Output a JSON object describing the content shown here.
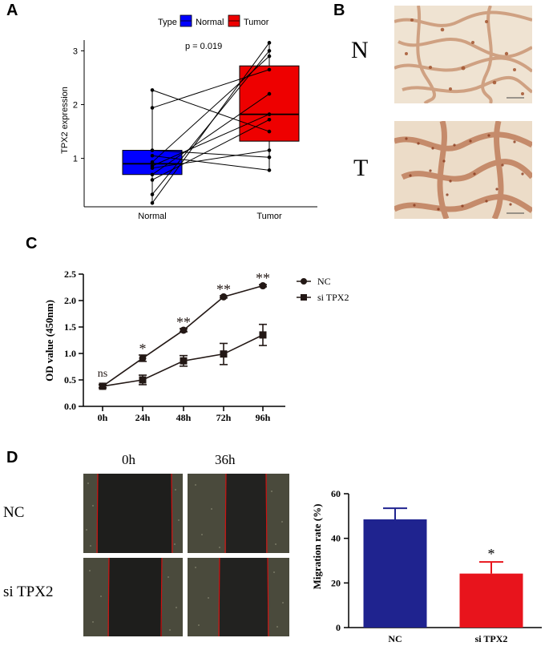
{
  "panels": {
    "a": "A",
    "b": "B",
    "c": "C",
    "d": "D"
  },
  "panel_a": {
    "legend_title": "Type",
    "legend_items": [
      {
        "label": "Normal",
        "color": "#0000ff"
      },
      {
        "label": "Tumor",
        "color": "#ee0000"
      }
    ],
    "pvalue": "p = 0.019"
  },
  "panel_b": {
    "labels": [
      "N",
      "T"
    ]
  },
  "panel_c": {
    "legend": [
      "NC",
      "si TPX2"
    ],
    "significance": [
      "ns",
      "*",
      "**",
      "**",
      "**"
    ]
  },
  "panel_d": {
    "columns": [
      "0h",
      "36h"
    ],
    "rows": [
      "NC",
      "si TPX2"
    ]
  },
  "colors": {
    "normal": "#0000ff",
    "tumor": "#ee0000",
    "nc_bar": "#1f238f",
    "si_bar": "#e8141c"
  },
  "chart_data": [
    {
      "id": "A",
      "type": "box",
      "ylabel": "TPX2 expression",
      "categories": [
        "Normal",
        "Tumor"
      ],
      "yticks": [
        1,
        2,
        3
      ],
      "ylim": [
        0.1,
        3.2
      ],
      "boxes": [
        {
          "name": "Normal",
          "q1": 0.7,
          "median": 0.9,
          "q3": 1.15,
          "whisker_low": 0.17,
          "whisker_high": 2.27
        },
        {
          "name": "Tumor",
          "q1": 1.32,
          "median": 1.82,
          "q3": 2.72,
          "whisker_low": 0.77,
          "whisker_high": 3.15
        }
      ],
      "pairs": [
        [
          2.27,
          1.5
        ],
        [
          1.94,
          2.65
        ],
        [
          1.15,
          1.02
        ],
        [
          1.05,
          0.78
        ],
        [
          0.93,
          2.9
        ],
        [
          0.86,
          1.82
        ],
        [
          0.82,
          1.15
        ],
        [
          0.7,
          2.2
        ],
        [
          0.6,
          1.72
        ],
        [
          0.33,
          3.0
        ],
        [
          0.17,
          3.15
        ]
      ],
      "pvalue": "p = 0.019"
    },
    {
      "id": "C",
      "type": "line",
      "ylabel": "OD value (450nm)",
      "categories": [
        "0h",
        "24h",
        "48h",
        "72h",
        "96h"
      ],
      "yticks": [
        "0.0",
        "0.5",
        "1.0",
        "1.5",
        "2.0",
        "2.5"
      ],
      "ylim": [
        0,
        2.5
      ],
      "series": [
        {
          "name": "NC",
          "values": [
            0.38,
            0.91,
            1.44,
            2.07,
            2.28
          ],
          "errors": [
            0.03,
            0.06,
            0.03,
            0.02,
            0.02
          ]
        },
        {
          "name": "si TPX2",
          "values": [
            0.38,
            0.5,
            0.86,
            0.99,
            1.35
          ],
          "errors": [
            0.03,
            0.09,
            0.1,
            0.2,
            0.2
          ]
        }
      ]
    },
    {
      "id": "D",
      "type": "bar",
      "ylabel": "Migration rate (%)",
      "categories": [
        "NC",
        "si TPX2"
      ],
      "values": [
        48.5,
        24.2
      ],
      "errors": [
        5,
        5.2
      ],
      "yticks": [
        "0",
        "20",
        "40",
        "60"
      ],
      "ylim": [
        0,
        60
      ],
      "annotation": "*"
    }
  ]
}
